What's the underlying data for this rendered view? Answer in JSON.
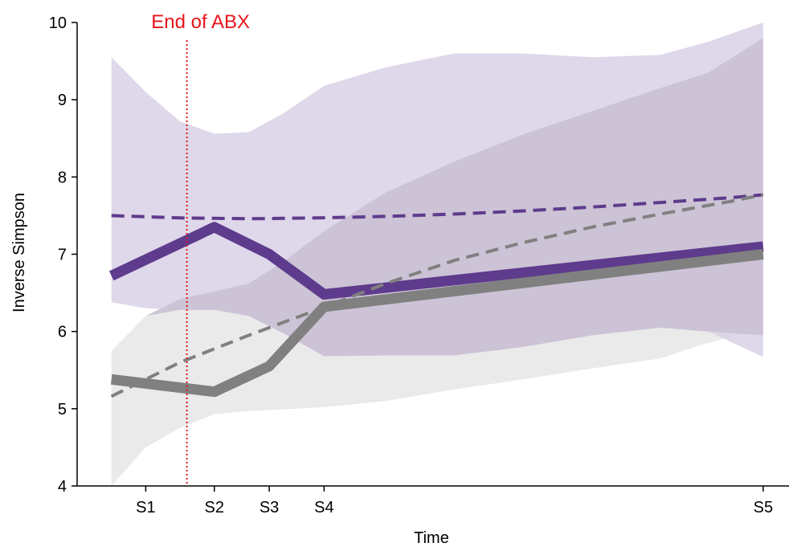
{
  "chart_data": {
    "type": "line",
    "xlabel": "Time",
    "ylabel": "Inverse Simpson",
    "ylim": [
      4,
      10
    ],
    "yticks": [
      4,
      5,
      6,
      7,
      8,
      9,
      10
    ],
    "x_ticks": [
      {
        "label": "S1",
        "value": 1.0
      },
      {
        "label": "S2",
        "value": 2.0
      },
      {
        "label": "S3",
        "value": 2.8
      },
      {
        "label": "S4",
        "value": 3.6
      },
      {
        "label": "S5",
        "value": 10.0
      }
    ],
    "xlim": [
      0,
      10.4
    ],
    "annotation": {
      "text": "End of ABX",
      "x": 1.6,
      "color": "#e8141c"
    },
    "colors": {
      "purple": "#5e3b8c",
      "gray": "#808080",
      "purple_band": "#d9d0e6",
      "purple_band_inner": "#c9c0d2",
      "gray_band": "#e6e6e6"
    },
    "series": [
      {
        "style": "solid-thick",
        "color": "#5e3b8c",
        "x": [
          0.5,
          2.0,
          2.8,
          3.6,
          10.0
        ],
        "y": [
          6.72,
          7.35,
          7.0,
          6.48,
          7.1
        ]
      },
      {
        "style": "solid-thick",
        "color": "#808080",
        "x": [
          0.5,
          2.0,
          2.8,
          3.6,
          10.0
        ],
        "y": [
          5.38,
          5.22,
          5.55,
          6.32,
          7.0
        ]
      },
      {
        "style": "dashed",
        "color": "#5e3b8c",
        "x": [
          0.5,
          1.5,
          2.5,
          3.5,
          4.5,
          5.5,
          6.5,
          7.5,
          8.5,
          9.5,
          10.0
        ],
        "y": [
          7.5,
          7.47,
          7.46,
          7.47,
          7.49,
          7.52,
          7.56,
          7.61,
          7.67,
          7.73,
          7.77
        ]
      },
      {
        "style": "dashed",
        "color": "#808080",
        "x": [
          0.5,
          1.5,
          2.5,
          3.5,
          4.5,
          5.5,
          6.5,
          7.5,
          8.5,
          9.5,
          10.0
        ],
        "y": [
          5.16,
          5.6,
          5.95,
          6.28,
          6.62,
          6.92,
          7.15,
          7.35,
          7.52,
          7.68,
          7.77
        ]
      }
    ],
    "bands": [
      {
        "color": "#e6e6e6",
        "x": [
          0.5,
          1.0,
          1.5,
          2.0,
          2.5,
          3.0,
          3.6,
          4.5,
          5.5,
          6.5,
          7.5,
          8.5,
          9.0,
          10.0
        ],
        "upper": [
          5.75,
          6.2,
          6.42,
          6.52,
          6.42,
          6.32,
          6.18,
          6.1,
          6.05,
          6.08,
          6.12,
          6.18,
          6.3,
          6.4
        ],
        "lower": [
          4.0,
          4.5,
          4.75,
          4.93,
          4.97,
          4.99,
          5.02,
          5.1,
          5.25,
          5.38,
          5.52,
          5.65,
          5.8,
          6.05
        ]
      },
      {
        "color": "#d9d0e6",
        "x": [
          0.5,
          1.0,
          1.5,
          2.0,
          2.5,
          3.0,
          3.6,
          4.5,
          5.5,
          6.5,
          7.5,
          8.5,
          9.2,
          10.0
        ],
        "upper": [
          9.55,
          9.1,
          8.72,
          8.56,
          8.58,
          8.82,
          9.18,
          9.42,
          9.6,
          9.6,
          9.55,
          9.58,
          9.75,
          10.0
        ],
        "lower": [
          6.38,
          6.3,
          6.28,
          6.28,
          6.2,
          5.98,
          5.68,
          5.69,
          5.69,
          5.8,
          5.95,
          6.05,
          6.0,
          5.67
        ]
      },
      {
        "color": "#c9c0d2",
        "x": [
          0.5,
          1.0,
          1.5,
          2.0,
          2.5,
          3.0,
          3.6,
          4.5,
          5.5,
          6.5,
          7.5,
          8.5,
          9.2,
          10.0
        ],
        "upper": [
          5.75,
          6.2,
          6.42,
          6.52,
          6.62,
          6.9,
          7.3,
          7.8,
          8.2,
          8.55,
          8.85,
          9.15,
          9.35,
          9.8
        ],
        "lower": [
          5.75,
          6.2,
          6.28,
          6.28,
          6.2,
          5.98,
          5.68,
          5.69,
          5.69,
          5.8,
          5.95,
          6.05,
          6.0,
          5.95
        ]
      }
    ]
  }
}
